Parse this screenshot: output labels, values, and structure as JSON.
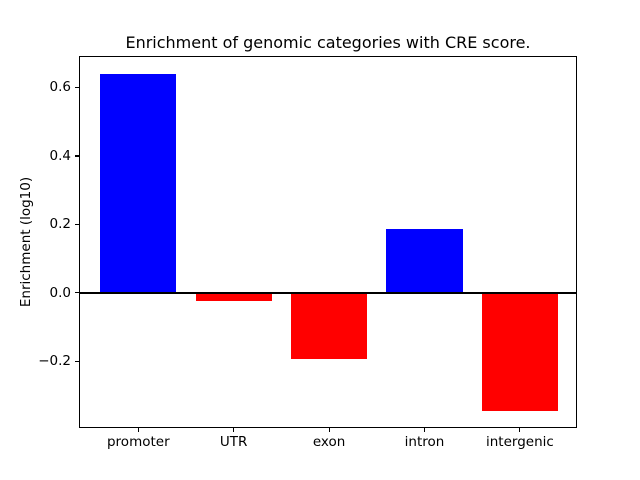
{
  "chart_data": {
    "type": "bar",
    "title": "Enrichment of genomic categories with CRE score.",
    "xlabel": "",
    "ylabel": "Enrichment (log10)",
    "categories": [
      "promoter",
      "UTR",
      "exon",
      "intron",
      "intergenic"
    ],
    "values": [
      0.638,
      -0.023,
      -0.192,
      0.187,
      -0.344
    ],
    "bar_colors": [
      "#0000ff",
      "#ff0000",
      "#ff0000",
      "#0000ff",
      "#ff0000"
    ],
    "positive_color": "#0000ff",
    "negative_color": "#ff0000",
    "yticks": [
      -0.2,
      0.0,
      0.2,
      0.4,
      0.6
    ],
    "ytick_labels": [
      "−0.2",
      "0.0",
      "0.2",
      "0.4",
      "0.6"
    ],
    "ylim": [
      -0.392,
      0.689
    ],
    "grid": false,
    "zero_line": true,
    "legend": null,
    "background_color": "#ffffff",
    "axis_color": "#000000"
  }
}
